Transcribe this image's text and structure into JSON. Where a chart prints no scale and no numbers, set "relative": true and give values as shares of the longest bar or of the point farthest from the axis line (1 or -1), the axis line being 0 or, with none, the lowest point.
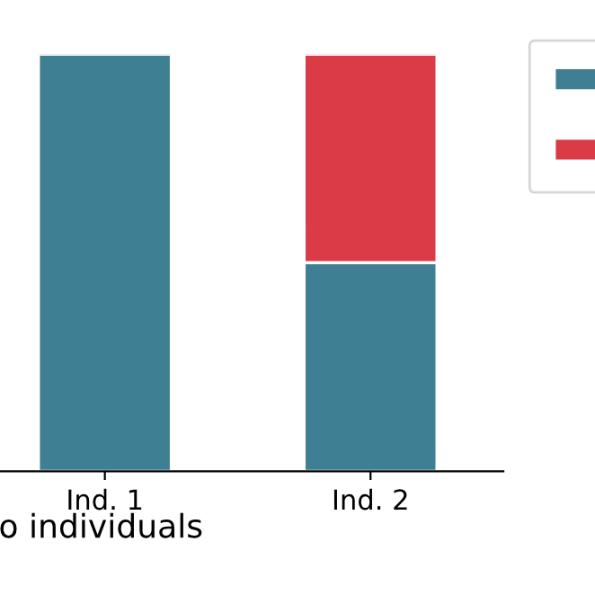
{
  "chart_data": {
    "type": "bar",
    "stacked": true,
    "relative": true,
    "xlabel": "o individuals",
    "categories": [
      "Ind. 1",
      "Ind. 2"
    ],
    "series": [
      {
        "color": "#3f7f93",
        "values": [
          1.0,
          0.5
        ]
      },
      {
        "color": "#da3b46",
        "values": [
          null,
          0.5
        ]
      }
    ],
    "grid": false
  }
}
